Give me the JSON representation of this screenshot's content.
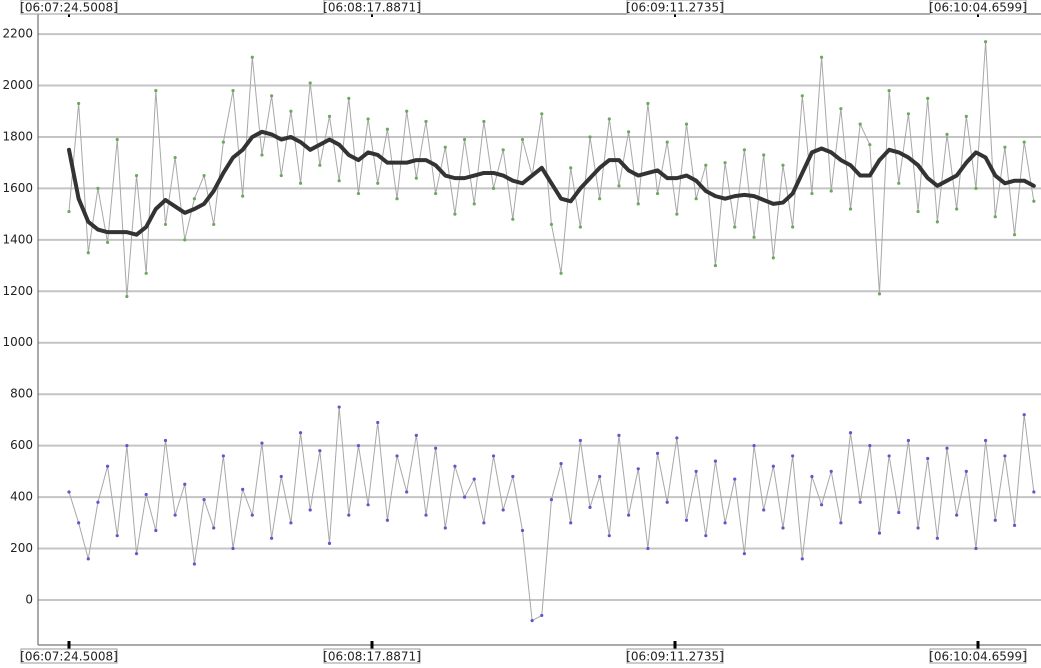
{
  "chart_data": {
    "type": "line",
    "x": [
      22044.5,
      22046.2,
      22047.9,
      22049.6,
      22051.3,
      22053,
      22054.7,
      22056.4,
      22058.1,
      22059.8,
      22061.5,
      22063.2,
      22064.9,
      22066.6,
      22068.3,
      22070,
      22071.7,
      22073.4,
      22075.1,
      22076.8,
      22078.5,
      22080.2,
      22081.9,
      22083.6,
      22085.3,
      22087,
      22088.7,
      22090.4,
      22092.1,
      22093.8,
      22095.5,
      22097.2,
      22098.9,
      22100.6,
      22102.3,
      22104,
      22105.7,
      22107.4,
      22109.1,
      22110.8,
      22112.5,
      22114.2,
      22115.9,
      22117.6,
      22119.3,
      22121,
      22122.7,
      22124.4,
      22126.1,
      22127.8,
      22129.5,
      22131.2,
      22132.9,
      22134.6,
      22136.3,
      22138,
      22139.7,
      22141.4,
      22143.1,
      22144.8,
      22146.5,
      22148.2,
      22149.9,
      22151.6,
      22153.3,
      22155,
      22156.7,
      22158.4,
      22160.1,
      22161.8,
      22163.5,
      22165.2,
      22166.9,
      22168.6,
      22170.3,
      22172,
      22173.7,
      22175.4,
      22177.1,
      22178.8,
      22180.5,
      22182.2,
      22183.9,
      22185.6,
      22187.3,
      22189,
      22190.7,
      22192.4,
      22194.1,
      22195.8,
      22197.5,
      22199.2,
      22200.9,
      22202.6,
      22204.3,
      22206,
      22207.7,
      22209.4,
      22211.1,
      22212.8,
      22214.5
    ],
    "series": [
      {
        "color": "#a8a8a8",
        "marker_color": "#6aaa5a",
        "line_width": 1,
        "markers": true,
        "values": [
          1510,
          1930,
          1350,
          1600,
          1390,
          1790,
          1180,
          1650,
          1270,
          1980,
          1460,
          1720,
          1400,
          1560,
          1650,
          1460,
          1780,
          1980,
          1570,
          2110,
          1730,
          1960,
          1650,
          1900,
          1620,
          2010,
          1690,
          1880,
          1630,
          1950,
          1580,
          1870,
          1620,
          1830,
          1560,
          1900,
          1640,
          1860,
          1580,
          1760,
          1500,
          1790,
          1540,
          1860,
          1600,
          1750,
          1480,
          1790,
          1650,
          1890,
          1460,
          1270,
          1680,
          1450,
          1800,
          1560,
          1870,
          1610,
          1820,
          1540,
          1930,
          1580,
          1780,
          1500,
          1850,
          1560,
          1690,
          1300,
          1700,
          1450,
          1750,
          1410,
          1730,
          1330,
          1690,
          1450,
          1960,
          1580,
          2110,
          1590,
          1910,
          1520,
          1850,
          1770,
          1190,
          1980,
          1620,
          1890,
          1510,
          1950,
          1470,
          1810,
          1520,
          1880,
          1600,
          2170,
          1490,
          1760,
          1420,
          1780,
          1550
        ]
      },
      {
        "color": "#a8a8a8",
        "marker_color": "#5a5acc",
        "line_width": 1,
        "markers": true,
        "values": [
          420,
          300,
          160,
          380,
          520,
          250,
          600,
          180,
          410,
          270,
          620,
          330,
          450,
          140,
          390,
          280,
          560,
          200,
          430,
          330,
          610,
          240,
          480,
          300,
          650,
          350,
          580,
          220,
          750,
          330,
          600,
          370,
          690,
          310,
          560,
          420,
          640,
          330,
          590,
          280,
          520,
          400,
          470,
          300,
          560,
          350,
          480,
          270,
          -80,
          -60,
          390,
          530,
          300,
          620,
          360,
          480,
          250,
          640,
          330,
          510,
          200,
          570,
          380,
          630,
          310,
          500,
          250,
          540,
          300,
          470,
          180,
          600,
          350,
          520,
          280,
          560,
          160,
          480,
          370,
          500,
          300,
          650,
          380,
          600,
          260,
          560,
          340,
          620,
          280,
          550,
          240,
          590,
          330,
          500,
          200,
          620,
          310,
          560,
          290,
          720,
          420
        ]
      },
      {
        "color": "#333333",
        "line_width": 4,
        "markers": false,
        "values": [
          1750,
          1560,
          1470,
          1440,
          1430,
          1430,
          1430,
          1420,
          1450,
          1520,
          1555,
          1530,
          1505,
          1520,
          1540,
          1590,
          1660,
          1720,
          1750,
          1800,
          1820,
          1810,
          1790,
          1800,
          1780,
          1750,
          1770,
          1790,
          1770,
          1730,
          1710,
          1740,
          1730,
          1700,
          1700,
          1700,
          1710,
          1710,
          1690,
          1650,
          1640,
          1640,
          1650,
          1660,
          1660,
          1650,
          1630,
          1620,
          1650,
          1680,
          1620,
          1560,
          1550,
          1600,
          1640,
          1680,
          1710,
          1710,
          1670,
          1650,
          1660,
          1670,
          1640,
          1640,
          1650,
          1630,
          1590,
          1570,
          1560,
          1570,
          1575,
          1570,
          1555,
          1540,
          1545,
          1580,
          1660,
          1740,
          1755,
          1740,
          1710,
          1690,
          1650,
          1650,
          1710,
          1750,
          1740,
          1720,
          1690,
          1640,
          1610,
          1630,
          1650,
          1700,
          1740,
          1720,
          1650,
          1620,
          1630,
          1630,
          1610
        ]
      }
    ],
    "xlim": [
      22039.04,
      22215.76
    ],
    "xticks": [
      {
        "value": 22044.5008,
        "label": "[06:07:24.5008]"
      },
      {
        "value": 22097.8871,
        "label": "[06:08:17.8871]"
      },
      {
        "value": 22151.2735,
        "label": "[06:09:11.2735]"
      },
      {
        "value": 22204.6599,
        "label": "[06:10:04.6599]"
      }
    ],
    "ylim": [
      -175,
      2278
    ],
    "yticks": [
      0,
      200,
      400,
      600,
      800,
      1000,
      1200,
      1400,
      1600,
      1800,
      2000,
      2200
    ],
    "grid": true
  }
}
